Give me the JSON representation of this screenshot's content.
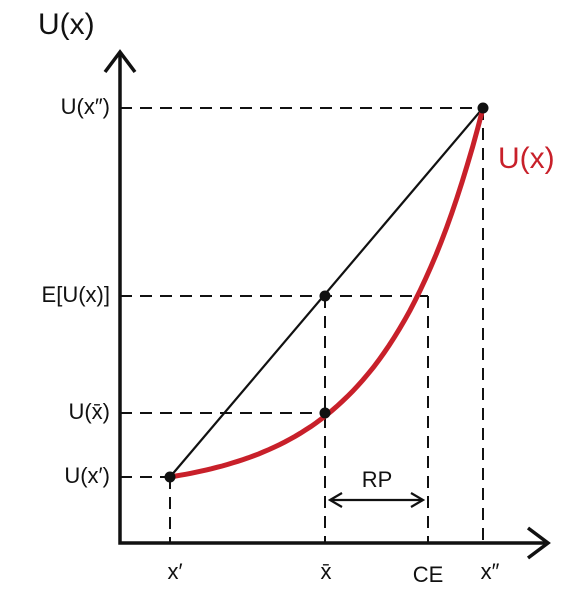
{
  "axis": {
    "y_label": "U(x)"
  },
  "y_labels": [
    "U(x″)",
    "E[U(x)]",
    "U(x̄)",
    "U(x′)"
  ],
  "x_labels": [
    "x′",
    "x̄",
    "CE",
    "x″"
  ],
  "curve_label": "U(x)",
  "risk_premium_label": "RP"
}
